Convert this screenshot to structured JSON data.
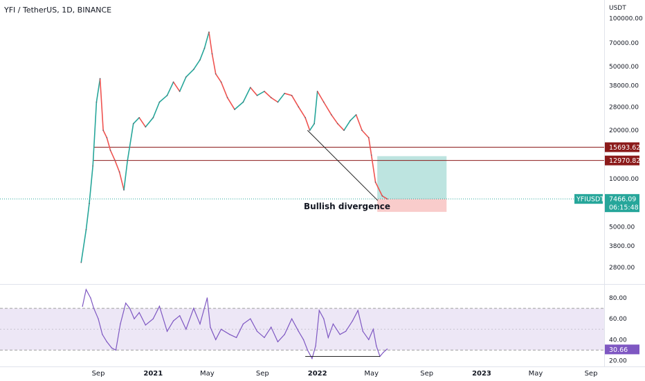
{
  "header": {
    "symbol_title": "YFI / TetherUS, 1D, BINANCE",
    "unit": "USDT"
  },
  "annotation": "Bullish divergence",
  "colors": {
    "up": "#26a69a",
    "down": "#ef5350",
    "level_line": "#8b1a1a",
    "rsi_line": "#7e57c2",
    "rsi_band": "#ede7f6",
    "tp_zone": "#b2dfdb",
    "sl_zone": "#f8c6c5"
  },
  "chart_data": [
    {
      "type": "line",
      "name": "price",
      "symbol": "YFIUSDT",
      "yscale": "log",
      "ylim": [
        2200,
        130000
      ],
      "yticks": [
        "100000.00",
        "70000.00",
        "50000.00",
        "38000.00",
        "28000.00",
        "20000.00",
        "10000.00",
        "5000.00",
        "3800.00",
        "2800.00"
      ],
      "x_ticks": [
        {
          "label": "Sep",
          "date": "2020-09-01",
          "bold": false
        },
        {
          "label": "2021",
          "date": "2021-01-01",
          "bold": true
        },
        {
          "label": "May",
          "date": "2021-05-01",
          "bold": false
        },
        {
          "label": "Sep",
          "date": "2021-09-01",
          "bold": false
        },
        {
          "label": "2022",
          "date": "2022-01-01",
          "bold": true
        },
        {
          "label": "May",
          "date": "2022-05-01",
          "bold": false
        },
        {
          "label": "Sep",
          "date": "2022-09-01",
          "bold": false
        },
        {
          "label": "2023",
          "date": "2023-01-01",
          "bold": true
        },
        {
          "label": "May",
          "date": "2023-05-01",
          "bold": false
        },
        {
          "label": "Sep",
          "date": "2023-09-01",
          "bold": false
        }
      ],
      "x": [
        "2020-07-25",
        "2020-08-05",
        "2020-08-12",
        "2020-08-20",
        "2020-08-28",
        "2020-09-05",
        "2020-09-12",
        "2020-09-20",
        "2020-09-28",
        "2020-10-08",
        "2020-10-18",
        "2020-10-28",
        "2020-11-05",
        "2020-11-18",
        "2020-12-01",
        "2020-12-15",
        "2021-01-01",
        "2021-01-15",
        "2021-02-01",
        "2021-02-15",
        "2021-03-01",
        "2021-03-15",
        "2021-04-01",
        "2021-04-15",
        "2021-04-25",
        "2021-05-05",
        "2021-05-12",
        "2021-05-20",
        "2021-06-01",
        "2021-06-15",
        "2021-07-01",
        "2021-07-20",
        "2021-08-05",
        "2021-08-20",
        "2021-09-05",
        "2021-09-20",
        "2021-10-05",
        "2021-10-20",
        "2021-11-05",
        "2021-11-20",
        "2021-12-05",
        "2021-12-15",
        "2021-12-25",
        "2022-01-01",
        "2022-01-15",
        "2022-02-01",
        "2022-02-15",
        "2022-03-01",
        "2022-03-15",
        "2022-03-28",
        "2022-04-10",
        "2022-04-25",
        "2022-05-01",
        "2022-05-10",
        "2022-05-25",
        "2022-06-05"
      ],
      "values": [
        3000,
        4800,
        7000,
        12000,
        30000,
        42000,
        20000,
        18000,
        15000,
        13000,
        11000,
        8500,
        13000,
        22000,
        24000,
        21000,
        24000,
        30000,
        33000,
        40000,
        35000,
        43000,
        48000,
        55000,
        65000,
        82000,
        60000,
        45000,
        40000,
        32000,
        27000,
        30000,
        37000,
        33000,
        35000,
        32000,
        30000,
        34000,
        33000,
        28000,
        24000,
        20000,
        22000,
        35000,
        30000,
        25000,
        22000,
        20000,
        23000,
        25000,
        20000,
        18000,
        14000,
        9500,
        7800,
        7466
      ]
    },
    {
      "type": "line",
      "name": "RSI",
      "ylim": [
        15,
        92
      ],
      "yticks": [
        "80.00",
        "60.00",
        "40.00",
        "20.00"
      ],
      "band": [
        30,
        70
      ],
      "midline": 50,
      "x": [
        "2020-07-28",
        "2020-08-05",
        "2020-08-15",
        "2020-08-22",
        "2020-09-01",
        "2020-09-10",
        "2020-09-20",
        "2020-10-01",
        "2020-10-10",
        "2020-10-20",
        "2020-11-01",
        "2020-11-10",
        "2020-11-20",
        "2020-12-01",
        "2020-12-15",
        "2021-01-01",
        "2021-01-15",
        "2021-02-01",
        "2021-02-15",
        "2021-03-01",
        "2021-03-15",
        "2021-04-01",
        "2021-04-15",
        "2021-05-01",
        "2021-05-08",
        "2021-05-20",
        "2021-06-01",
        "2021-06-20",
        "2021-07-05",
        "2021-07-20",
        "2021-08-05",
        "2021-08-20",
        "2021-09-05",
        "2021-09-20",
        "2021-10-05",
        "2021-10-20",
        "2021-11-05",
        "2021-11-20",
        "2021-12-01",
        "2021-12-10",
        "2021-12-20",
        "2021-12-28",
        "2022-01-05",
        "2022-01-15",
        "2022-01-25",
        "2022-02-05",
        "2022-02-20",
        "2022-03-05",
        "2022-03-20",
        "2022-04-01",
        "2022-04-12",
        "2022-04-25",
        "2022-05-05",
        "2022-05-12",
        "2022-05-20",
        "2022-05-28",
        "2022-06-05"
      ],
      "values": [
        72,
        88,
        80,
        70,
        60,
        45,
        38,
        32,
        30,
        55,
        75,
        70,
        60,
        66,
        54,
        60,
        72,
        48,
        58,
        63,
        50,
        70,
        55,
        80,
        52,
        40,
        50,
        45,
        42,
        55,
        60,
        48,
        42,
        52,
        38,
        45,
        60,
        48,
        40,
        30,
        22,
        34,
        68,
        60,
        42,
        55,
        45,
        48,
        58,
        68,
        48,
        40,
        50,
        34,
        24,
        28,
        31
      ]
    }
  ],
  "levels": [
    {
      "label": "15693.62",
      "value": 15693.62
    },
    {
      "label": "12970.82",
      "value": 12970.82
    }
  ],
  "position": {
    "entry": 7466.09,
    "target": 13800,
    "stop": 6200,
    "start": "2022-05-14",
    "end": "2022-10-15"
  },
  "divergence_lines": {
    "price": {
      "from": {
        "date": "2021-12-10",
        "value": 20000
      },
      "to": {
        "date": "2022-05-15",
        "value": 7300
      }
    },
    "rsi": {
      "from": {
        "date": "2021-12-05",
        "value": 24
      },
      "to": {
        "date": "2022-05-20",
        "value": 24
      }
    }
  },
  "price_badge": {
    "symbol": "YFIUSDT",
    "price": "7466.09",
    "countdown": "06:15:48",
    "value": 7466.09
  },
  "rsi_badge": {
    "value": "30.66",
    "level": 30.66
  }
}
